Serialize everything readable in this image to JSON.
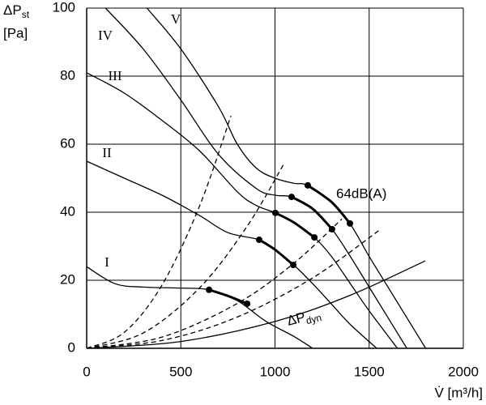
{
  "chart_data": {
    "type": "line",
    "y_label": {
      "text": "ΔP",
      "sub": "st",
      "unit": "[Pa]"
    },
    "x_label": "V̇ [m³/h]",
    "xlim": [
      0,
      2000
    ],
    "xticks": [
      0,
      500,
      1000,
      1500,
      2000
    ],
    "ylim": [
      0,
      100
    ],
    "yticks": [
      0,
      20,
      40,
      60,
      80,
      100
    ],
    "grid": true,
    "annotation": {
      "text": "ΔP",
      "sub": "dyn"
    },
    "series": [
      {
        "name": "I",
        "color": "#000000",
        "x": [
          0,
          150,
          300,
          500,
          650,
          800,
          950,
          1100,
          1200
        ],
        "values": [
          24,
          19,
          18,
          17.7,
          17.2,
          14,
          8,
          3.5,
          0
        ]
      },
      {
        "name": "II",
        "color": "#000000",
        "x": [
          0,
          200,
          400,
          600,
          750,
          916,
          1000,
          1100,
          1200,
          1300,
          1400,
          1540
        ],
        "values": [
          55,
          50,
          45,
          39,
          34,
          31.9,
          29,
          24.5,
          19,
          13,
          7,
          0
        ]
      },
      {
        "name": "III",
        "color": "#000000",
        "x": [
          0,
          200,
          400,
          600,
          800,
          900,
          1002,
          1100,
          1209,
          1300,
          1400,
          1500,
          1650
        ],
        "values": [
          81,
          75,
          67,
          58,
          46,
          42,
          39.8,
          37,
          32.6,
          27,
          19,
          11,
          0
        ]
      },
      {
        "name": "IV",
        "color": "#000000",
        "x": [
          100,
          300,
          500,
          700,
          900,
          1000,
          1088,
          1200,
          1303,
          1400,
          1500,
          1600,
          1700
        ],
        "values": [
          100,
          88,
          73,
          57,
          47,
          45,
          44.5,
          41,
          35,
          27,
          18,
          9,
          0
        ]
      },
      {
        "name": "V",
        "color": "#000000",
        "x": [
          320,
          500,
          700,
          800,
          900,
          1000,
          1100,
          1174,
          1300,
          1398,
          1500,
          1600,
          1700,
          1800
        ],
        "values": [
          100,
          88,
          71,
          60,
          53,
          50,
          48.5,
          47.9,
          43,
          36.7,
          27,
          18,
          9,
          0
        ]
      },
      {
        "name": "64dB(A)",
        "color": "#000000",
        "thick": true,
        "dots": true,
        "x": [
          650,
          750,
          852,
          null,
          916,
          1000,
          1097,
          null,
          1002,
          1100,
          1209,
          null,
          1088,
          1200,
          1303,
          null,
          1174,
          1300,
          1398
        ],
        "values": [
          17.2,
          15.4,
          13.1,
          null,
          31.9,
          29,
          24.5,
          null,
          39.8,
          37,
          32.6,
          null,
          44.5,
          41,
          35,
          null,
          47.9,
          43,
          36.7
        ]
      },
      {
        "color": "#000000",
        "dash": true,
        "x": [
          0,
          200,
          400,
          600,
          766
        ],
        "values": [
          0,
          4.7,
          18.6,
          41.9,
          68.3
        ]
      },
      {
        "color": "#000000",
        "dash": true,
        "x": [
          0,
          300,
          600,
          850,
          1045
        ],
        "values": [
          0,
          4.5,
          17.8,
          35.7,
          54
        ]
      },
      {
        "color": "#000000",
        "dash": true,
        "x": [
          0,
          400,
          800,
          1100,
          1355
        ],
        "values": [
          0,
          3.3,
          13.2,
          25,
          38
        ]
      },
      {
        "color": "#000000",
        "dash": true,
        "x": [
          0,
          400,
          800,
          1200,
          1561
        ],
        "values": [
          0,
          2.3,
          9.2,
          20.7,
          35
        ]
      },
      {
        "color": "#000000",
        "x": [
          0,
          500,
          1000,
          1400,
          1798
        ],
        "values": [
          0,
          2,
          7.9,
          15.6,
          25.7
        ]
      }
    ]
  }
}
